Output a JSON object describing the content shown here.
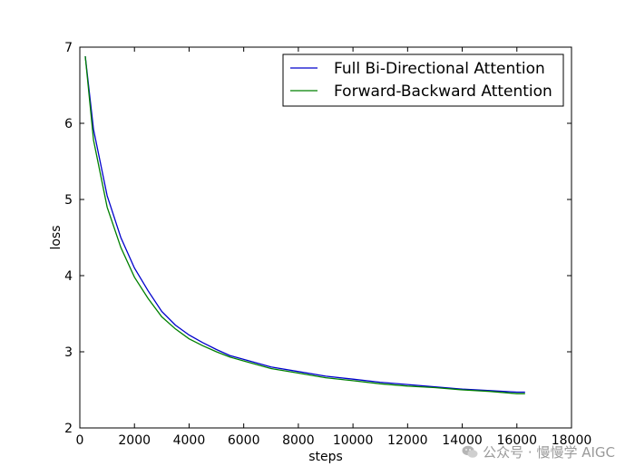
{
  "chart_data": {
    "type": "line",
    "title": "",
    "xlabel": "steps",
    "ylabel": "loss",
    "xlim": [
      0,
      18000
    ],
    "ylim": [
      2,
      7
    ],
    "xticks": [
      0,
      2000,
      4000,
      6000,
      8000,
      10000,
      12000,
      14000,
      16000,
      18000
    ],
    "yticks": [
      2,
      3,
      4,
      5,
      6,
      7
    ],
    "legend_position": "top-right",
    "series": [
      {
        "name": "Full Bi-Directional Attention",
        "color": "#0000cc",
        "x": [
          200,
          500,
          1000,
          1500,
          2000,
          2500,
          3000,
          3500,
          4000,
          4500,
          5000,
          5500,
          6000,
          7000,
          8000,
          9000,
          10000,
          11000,
          12000,
          13000,
          14000,
          15000,
          16000,
          16300
        ],
        "y": [
          6.88,
          5.92,
          5.05,
          4.5,
          4.1,
          3.8,
          3.53,
          3.35,
          3.22,
          3.12,
          3.03,
          2.95,
          2.9,
          2.8,
          2.74,
          2.68,
          2.64,
          2.6,
          2.57,
          2.54,
          2.51,
          2.49,
          2.47,
          2.47
        ]
      },
      {
        "name": "Forward-Backward Attention",
        "color": "#008000",
        "x": [
          200,
          500,
          1000,
          1500,
          2000,
          2500,
          3000,
          3500,
          4000,
          4500,
          5000,
          5500,
          6000,
          7000,
          8000,
          9000,
          10000,
          11000,
          12000,
          13000,
          14000,
          15000,
          16000,
          16300
        ],
        "y": [
          6.88,
          5.78,
          4.9,
          4.37,
          3.98,
          3.7,
          3.46,
          3.3,
          3.17,
          3.08,
          3.0,
          2.93,
          2.88,
          2.78,
          2.72,
          2.66,
          2.62,
          2.58,
          2.55,
          2.53,
          2.5,
          2.48,
          2.45,
          2.45
        ]
      }
    ]
  },
  "watermark": {
    "text": "公众号 · 慢慢学 AIGC",
    "icon": "wechat-icon"
  }
}
